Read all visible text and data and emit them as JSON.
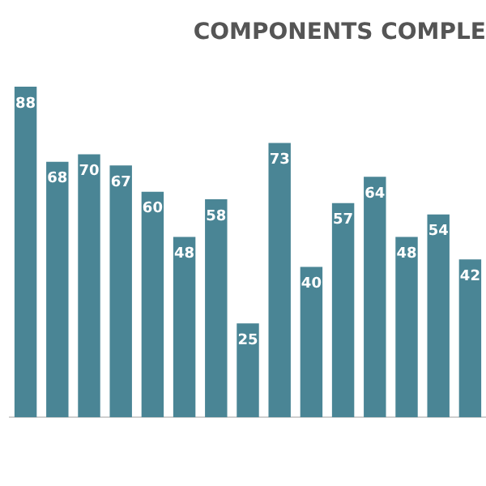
{
  "chart_data": {
    "type": "bar",
    "title": "COMPONENTS COMPLE",
    "categories": [
      null,
      null,
      null,
      null,
      null,
      null,
      null,
      null,
      null,
      null,
      null,
      null,
      null,
      null,
      null
    ],
    "values": [
      88,
      68,
      70,
      67,
      60,
      48,
      58,
      25,
      73,
      40,
      57,
      64,
      48,
      54,
      42
    ],
    "color": "#4a8595",
    "data_labels": true,
    "grid": false,
    "legend": false
  }
}
